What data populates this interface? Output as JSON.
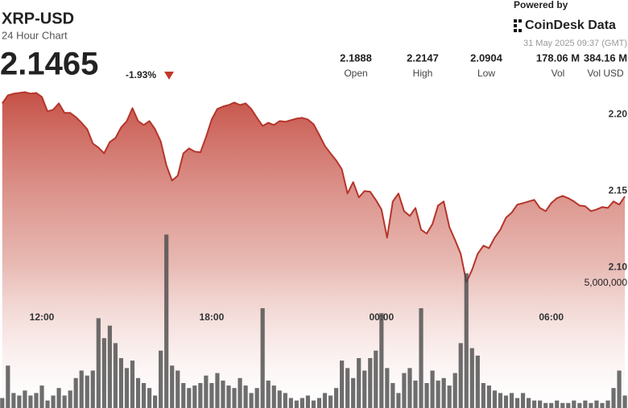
{
  "header": {
    "symbol": "XRP-USD",
    "subtitle": "24 Hour Chart",
    "price": 2.1465,
    "change": "-1.93%",
    "stats": [
      {
        "value": 2.1888,
        "label": "Open"
      },
      {
        "value": 2.2147,
        "label": "High"
      },
      {
        "value": 2.0904,
        "label": "Low"
      },
      {
        "value": "178.06 M",
        "label": "Vol"
      },
      {
        "value": "384.16 M",
        "label": "Vol USD"
      }
    ],
    "powered": "Powered by",
    "brand": "CoinDesk Data",
    "date": "31 May 2025 09:37 (GMT)"
  },
  "chart_data": [
    {
      "type": "area",
      "color": "#b5352b",
      "categories": [
        null,
        null,
        null,
        null,
        null,
        null,
        null,
        "12:00",
        null,
        null,
        null,
        null,
        null,
        null,
        null,
        null,
        null,
        null,
        null,
        null,
        null,
        null,
        null,
        null,
        null,
        null,
        null,
        null,
        null,
        null,
        null,
        null,
        null,
        null,
        null,
        null,
        null,
        "18:00",
        null,
        null,
        null,
        null,
        null,
        null,
        null,
        null,
        null,
        null,
        null,
        null,
        null,
        null,
        null,
        null,
        null,
        null,
        null,
        null,
        null,
        null,
        null,
        null,
        null,
        null,
        null,
        null,
        null,
        "00:00",
        null,
        null,
        null,
        null,
        null,
        null,
        null,
        null,
        null,
        null,
        null,
        null,
        null,
        null,
        null,
        null,
        null,
        null,
        null,
        null,
        null,
        null,
        null,
        null,
        null,
        null,
        null,
        null,
        null,
        "06:00",
        null,
        null,
        null,
        null,
        null,
        null,
        null,
        null,
        null,
        null,
        null,
        null,
        null
      ],
      "values": [
        2.2074,
        2.2126,
        2.2137,
        2.2142,
        2.2147,
        2.2137,
        2.2142,
        2.2116,
        2.2021,
        2.2032,
        2.2074,
        2.2011,
        2.2011,
        2.1984,
        2.1947,
        2.1905,
        2.1811,
        2.1784,
        2.1747,
        2.1821,
        2.1847,
        2.1916,
        2.1958,
        2.2042,
        2.1958,
        2.1932,
        2.1958,
        2.1905,
        2.1826,
        2.1668,
        2.1568,
        2.16,
        2.1747,
        2.1779,
        2.1758,
        2.1753,
        2.1853,
        2.1968,
        2.2037,
        2.2053,
        2.2063,
        2.2079,
        2.2063,
        2.2074,
        2.2037,
        2.1979,
        2.1926,
        2.1947,
        2.1932,
        2.1958,
        2.1953,
        2.1963,
        2.1974,
        2.1979,
        2.1968,
        2.1937,
        2.1868,
        2.1795,
        2.1747,
        2.17,
        2.1642,
        2.1484,
        2.1558,
        2.1458,
        2.15,
        2.1495,
        2.1442,
        2.1379,
        2.1195,
        2.1432,
        2.1484,
        2.1368,
        2.1337,
        2.1389,
        2.1247,
        2.1221,
        2.1284,
        2.1405,
        2.1432,
        2.1263,
        2.1179,
        2.1089,
        2.0904,
        2.0984,
        2.1089,
        2.1142,
        2.1126,
        2.1195,
        2.1247,
        2.1326,
        2.1358,
        2.1411,
        2.1421,
        2.1432,
        2.1442,
        2.1389,
        2.1368,
        2.1421,
        2.1453,
        2.1468,
        2.1453,
        2.1432,
        2.1405,
        2.14,
        2.1368,
        2.1379,
        2.1395,
        2.1389,
        2.1432,
        2.1411,
        2.1465
      ],
      "ylim": [
        2.008,
        2.275
      ],
      "yticks": [
        {
          "value": 2.1,
          "label": "2.10"
        },
        {
          "value": 2.15,
          "label": "2.15"
        },
        {
          "value": 2.2,
          "label": "2.20"
        }
      ]
    },
    {
      "type": "bar",
      "color": "#4a4a4a",
      "values": [
        400000,
        1700000,
        600000,
        500000,
        700000,
        500000,
        600000,
        900000,
        300000,
        500000,
        800000,
        500000,
        700000,
        1200000,
        1500000,
        1300000,
        1500000,
        3600000,
        2800000,
        3300000,
        2600000,
        2000000,
        1600000,
        1900000,
        1200000,
        1000000,
        800000,
        500000,
        2300000,
        6950000,
        1700000,
        1500000,
        1000000,
        800000,
        900000,
        1000000,
        1300000,
        1000000,
        1400000,
        1100000,
        900000,
        800000,
        1200000,
        900000,
        600000,
        800000,
        4000000,
        1100000,
        900000,
        700000,
        600000,
        400000,
        300000,
        400000,
        500000,
        300000,
        400000,
        600000,
        500000,
        800000,
        1900000,
        1600000,
        1200000,
        2000000,
        1500000,
        2000000,
        2300000,
        3800000,
        1600000,
        1000000,
        600000,
        1400000,
        1600000,
        1100000,
        4000000,
        1000000,
        1500000,
        1100000,
        1200000,
        900000,
        1400000,
        2600000,
        5400000,
        2400000,
        2100000,
        1000000,
        900000,
        700000,
        600000,
        500000,
        600000,
        400000,
        600000,
        400000,
        300000,
        300000,
        200000,
        200000,
        300000,
        200000,
        200000,
        300000,
        200000,
        300000,
        200000,
        300000,
        200000,
        300000,
        800000,
        1500000,
        500000
      ],
      "ylim": [
        0,
        16350000
      ],
      "yticks": [
        {
          "value": 5000000,
          "label": "5,000,000"
        }
      ]
    }
  ]
}
